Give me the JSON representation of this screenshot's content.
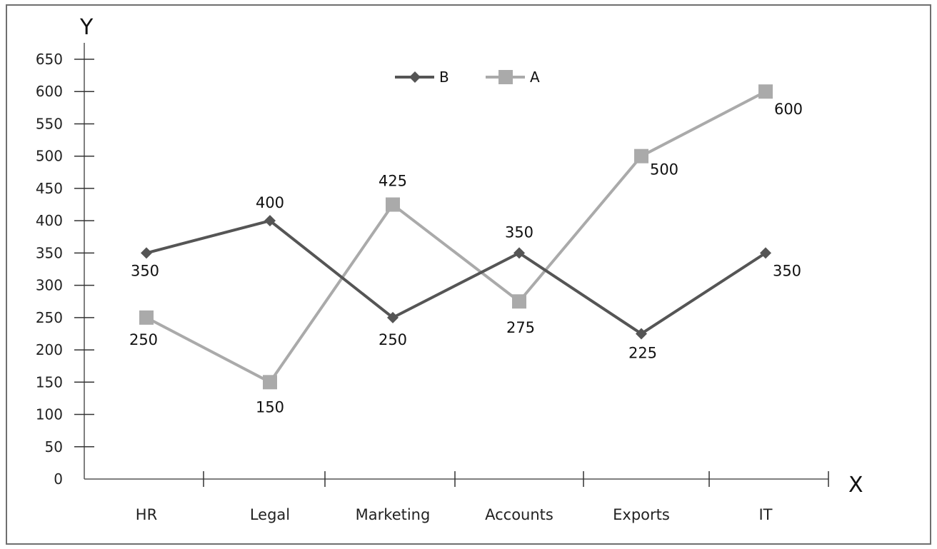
{
  "chart_data": {
    "type": "line",
    "xlabel": "X",
    "ylabel": "Y",
    "categories": [
      "HR",
      "Legal",
      "Marketing",
      "Accounts",
      "Exports",
      "IT"
    ],
    "ylim": [
      0,
      650
    ],
    "yticks": [
      0,
      50,
      100,
      150,
      200,
      250,
      300,
      350,
      400,
      450,
      500,
      550,
      600,
      650
    ],
    "grid": false,
    "legend_position": "top-center",
    "series": [
      {
        "name": "B",
        "values": [
          350,
          400,
          250,
          350,
          225,
          350
        ],
        "color": "#555555",
        "marker": "diamond"
      },
      {
        "name": "A",
        "values": [
          250,
          150,
          425,
          275,
          500,
          600
        ],
        "color": "#aaaaaa",
        "marker": "square"
      }
    ]
  }
}
